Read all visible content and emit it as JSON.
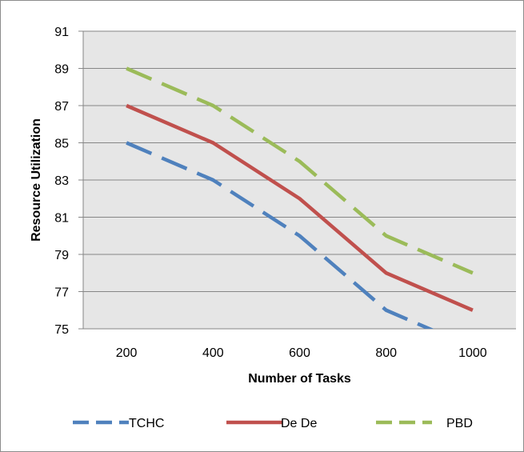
{
  "chart_data": {
    "type": "line",
    "title": "",
    "xlabel": "Number of Tasks",
    "ylabel": "Resource Utilization",
    "categories": [
      "200",
      "400",
      "600",
      "800",
      "1000"
    ],
    "ylim": [
      75,
      91
    ],
    "yticks": [
      "75",
      "77",
      "79",
      "81",
      "83",
      "85",
      "87",
      "89",
      "91"
    ],
    "grid": "horizontal",
    "legend_position": "bottom",
    "plot_background": "#e6e6e6",
    "series": [
      {
        "name": "TCHC",
        "x": [
          200,
          400,
          600,
          800,
          1000
        ],
        "values": [
          85,
          83,
          80,
          76,
          74
        ],
        "color": "#4f81bd",
        "dash": "dashed"
      },
      {
        "name": "De De",
        "x": [
          200,
          400,
          600,
          800,
          1000
        ],
        "values": [
          87,
          85,
          82,
          78,
          76
        ],
        "color": "#c0504d",
        "dash": "solid"
      },
      {
        "name": "PBD",
        "x": [
          200,
          400,
          600,
          800,
          1000
        ],
        "values": [
          89,
          87,
          84,
          80,
          78
        ],
        "color": "#9bbb59",
        "dash": "dashed"
      }
    ]
  }
}
